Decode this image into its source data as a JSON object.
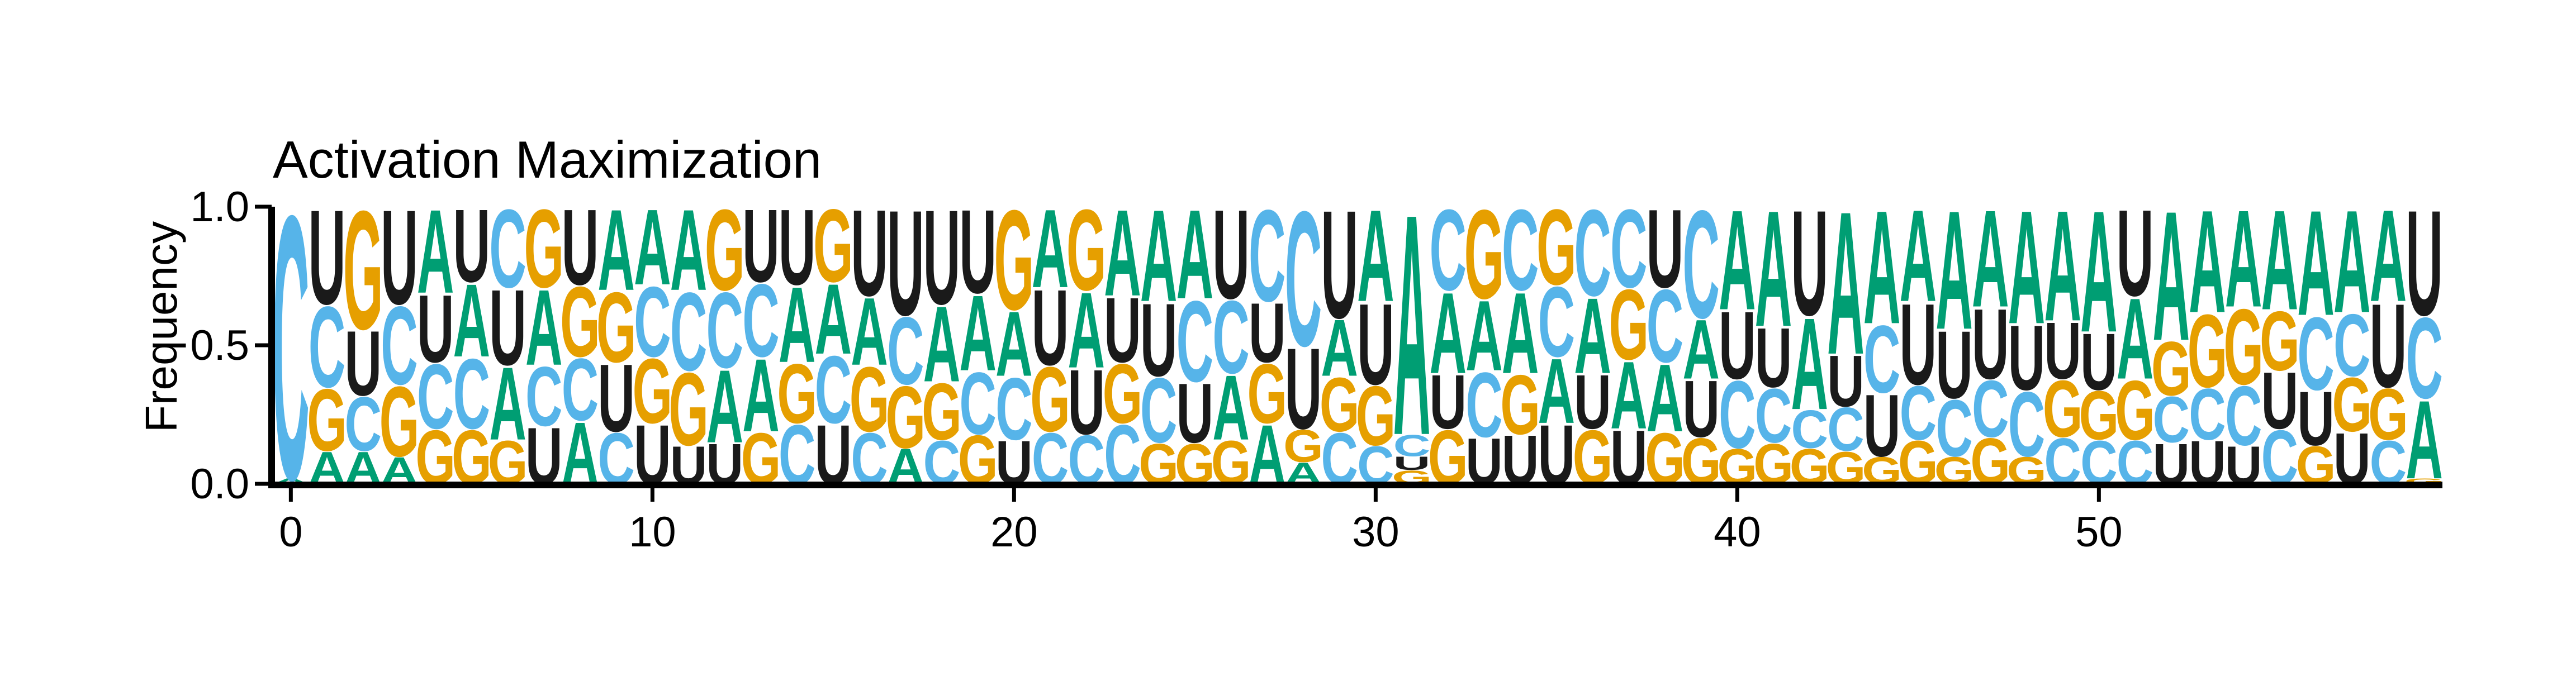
{
  "chart_data": {
    "type": "sequence-logo",
    "title": "Activation Maximization",
    "xlabel": "",
    "ylabel": "Frequency",
    "ylim": [
      0,
      1
    ],
    "xlim": [
      -0.5,
      59.5
    ],
    "xticks": [
      "0",
      "10",
      "20",
      "30",
      "40",
      "50"
    ],
    "xtick_values": [
      0,
      10,
      20,
      30,
      40,
      50
    ],
    "yticks": [
      "0.0",
      "0.5",
      "1.0"
    ],
    "ytick_values": [
      0,
      0.5,
      1
    ],
    "grid": false,
    "legend": "none",
    "colors": {
      "A": "#009E73",
      "C": "#56B4E9",
      "G": "#E69F00",
      "U": "#1A1A1A"
    },
    "positions": [
      {
        "pos": 0,
        "A": 0.02,
        "C": 0.98,
        "G": 0.0,
        "U": 0.0
      },
      {
        "pos": 1,
        "A": 0.12,
        "C": 0.3,
        "G": 0.23,
        "U": 0.35
      },
      {
        "pos": 2,
        "A": 0.12,
        "C": 0.2,
        "G": 0.44,
        "U": 0.24
      },
      {
        "pos": 3,
        "A": 0.1,
        "C": 0.29,
        "G": 0.26,
        "U": 0.35
      },
      {
        "pos": 4,
        "A": 0.31,
        "C": 0.24,
        "G": 0.2,
        "U": 0.25
      },
      {
        "pos": 5,
        "A": 0.27,
        "C": 0.26,
        "G": 0.2,
        "U": 0.27
      },
      {
        "pos": 6,
        "A": 0.27,
        "C": 0.29,
        "G": 0.16,
        "U": 0.28
      },
      {
        "pos": 7,
        "A": 0.28,
        "C": 0.22,
        "G": 0.29,
        "U": 0.21
      },
      {
        "pos": 8,
        "A": 0.23,
        "C": 0.23,
        "G": 0.26,
        "U": 0.28
      },
      {
        "pos": 9,
        "A": 0.3,
        "C": 0.19,
        "G": 0.26,
        "U": 0.25
      },
      {
        "pos": 10,
        "A": 0.28,
        "C": 0.26,
        "G": 0.24,
        "U": 0.22
      },
      {
        "pos": 11,
        "A": 0.3,
        "C": 0.29,
        "G": 0.27,
        "U": 0.14
      },
      {
        "pos": 12,
        "A": 0.27,
        "C": 0.28,
        "G": 0.3,
        "U": 0.15
      },
      {
        "pos": 13,
        "A": 0.27,
        "C": 0.27,
        "G": 0.19,
        "U": 0.27
      },
      {
        "pos": 14,
        "A": 0.28,
        "C": 0.22,
        "G": 0.22,
        "U": 0.28
      },
      {
        "pos": 15,
        "A": 0.26,
        "C": 0.25,
        "G": 0.27,
        "U": 0.22
      },
      {
        "pos": 16,
        "A": 0.25,
        "C": 0.19,
        "G": 0.24,
        "U": 0.32
      },
      {
        "pos": 17,
        "A": 0.13,
        "C": 0.25,
        "G": 0.23,
        "U": 0.39
      },
      {
        "pos": 18,
        "A": 0.28,
        "C": 0.16,
        "G": 0.21,
        "U": 0.35
      },
      {
        "pos": 19,
        "A": 0.28,
        "C": 0.23,
        "G": 0.18,
        "U": 0.31
      },
      {
        "pos": 20,
        "A": 0.24,
        "C": 0.23,
        "G": 0.37,
        "U": 0.16
      },
      {
        "pos": 21,
        "A": 0.29,
        "C": 0.19,
        "G": 0.24,
        "U": 0.28
      },
      {
        "pos": 22,
        "A": 0.28,
        "C": 0.18,
        "G": 0.3,
        "U": 0.24
      },
      {
        "pos": 23,
        "A": 0.32,
        "C": 0.22,
        "G": 0.22,
        "U": 0.24
      },
      {
        "pos": 24,
        "A": 0.34,
        "C": 0.24,
        "G": 0.15,
        "U": 0.27
      },
      {
        "pos": 25,
        "A": 0.33,
        "C": 0.3,
        "G": 0.15,
        "U": 0.22
      },
      {
        "pos": 26,
        "A": 0.24,
        "C": 0.27,
        "G": 0.16,
        "U": 0.33
      },
      {
        "pos": 27,
        "A": 0.22,
        "C": 0.34,
        "G": 0.22,
        "U": 0.22
      },
      {
        "pos": 28,
        "A": 0.08,
        "C": 0.5,
        "G": 0.12,
        "U": 0.3
      },
      {
        "pos": 29,
        "A": 0.21,
        "C": 0.19,
        "G": 0.2,
        "U": 0.4
      },
      {
        "pos": 30,
        "A": 0.34,
        "C": 0.14,
        "G": 0.22,
        "U": 0.3
      },
      {
        "pos": 31,
        "A": 0.82,
        "C": 0.08,
        "G": 0.05,
        "U": 0.05
      },
      {
        "pos": 32,
        "A": 0.3,
        "C": 0.3,
        "G": 0.2,
        "U": 0.2
      },
      {
        "pos": 33,
        "A": 0.26,
        "C": 0.24,
        "G": 0.33,
        "U": 0.17
      },
      {
        "pos": 34,
        "A": 0.3,
        "C": 0.3,
        "G": 0.22,
        "U": 0.18
      },
      {
        "pos": 35,
        "A": 0.24,
        "C": 0.26,
        "G": 0.28,
        "U": 0.22
      },
      {
        "pos": 36,
        "A": 0.28,
        "C": 0.32,
        "G": 0.2,
        "U": 0.2
      },
      {
        "pos": 37,
        "A": 0.25,
        "C": 0.29,
        "G": 0.26,
        "U": 0.2
      },
      {
        "pos": 38,
        "A": 0.25,
        "C": 0.27,
        "G": 0.19,
        "U": 0.29
      },
      {
        "pos": 39,
        "A": 0.22,
        "C": 0.4,
        "G": 0.17,
        "U": 0.21
      },
      {
        "pos": 40,
        "A": 0.37,
        "C": 0.25,
        "G": 0.13,
        "U": 0.25
      },
      {
        "pos": 41,
        "A": 0.43,
        "C": 0.2,
        "G": 0.15,
        "U": 0.22
      },
      {
        "pos": 42,
        "A": 0.34,
        "C": 0.14,
        "G": 0.13,
        "U": 0.39
      },
      {
        "pos": 43,
        "A": 0.53,
        "C": 0.16,
        "G": 0.12,
        "U": 0.19
      },
      {
        "pos": 44,
        "A": 0.42,
        "C": 0.25,
        "G": 0.1,
        "U": 0.23
      },
      {
        "pos": 45,
        "A": 0.34,
        "C": 0.2,
        "G": 0.16,
        "U": 0.3
      },
      {
        "pos": 46,
        "A": 0.44,
        "C": 0.21,
        "G": 0.1,
        "U": 0.25
      },
      {
        "pos": 47,
        "A": 0.36,
        "C": 0.21,
        "G": 0.17,
        "U": 0.26
      },
      {
        "pos": 48,
        "A": 0.42,
        "C": 0.24,
        "G": 0.1,
        "U": 0.24
      },
      {
        "pos": 49,
        "A": 0.41,
        "C": 0.17,
        "G": 0.21,
        "U": 0.21
      },
      {
        "pos": 50,
        "A": 0.45,
        "C": 0.16,
        "G": 0.18,
        "U": 0.21
      },
      {
        "pos": 51,
        "A": 0.3,
        "C": 0.16,
        "G": 0.22,
        "U": 0.32
      },
      {
        "pos": 52,
        "A": 0.48,
        "C": 0.17,
        "G": 0.2,
        "U": 0.15
      },
      {
        "pos": 53,
        "A": 0.38,
        "C": 0.19,
        "G": 0.27,
        "U": 0.16
      },
      {
        "pos": 54,
        "A": 0.36,
        "C": 0.22,
        "G": 0.28,
        "U": 0.14
      },
      {
        "pos": 55,
        "A": 0.37,
        "C": 0.2,
        "G": 0.22,
        "U": 0.21
      },
      {
        "pos": 56,
        "A": 0.39,
        "C": 0.27,
        "G": 0.14,
        "U": 0.2
      },
      {
        "pos": 57,
        "A": 0.38,
        "C": 0.23,
        "G": 0.2,
        "U": 0.19
      },
      {
        "pos": 58,
        "A": 0.34,
        "C": 0.16,
        "G": 0.19,
        "U": 0.31
      },
      {
        "pos": 59,
        "A": 0.29,
        "C": 0.3,
        "G": 0.02,
        "U": 0.39
      }
    ]
  }
}
